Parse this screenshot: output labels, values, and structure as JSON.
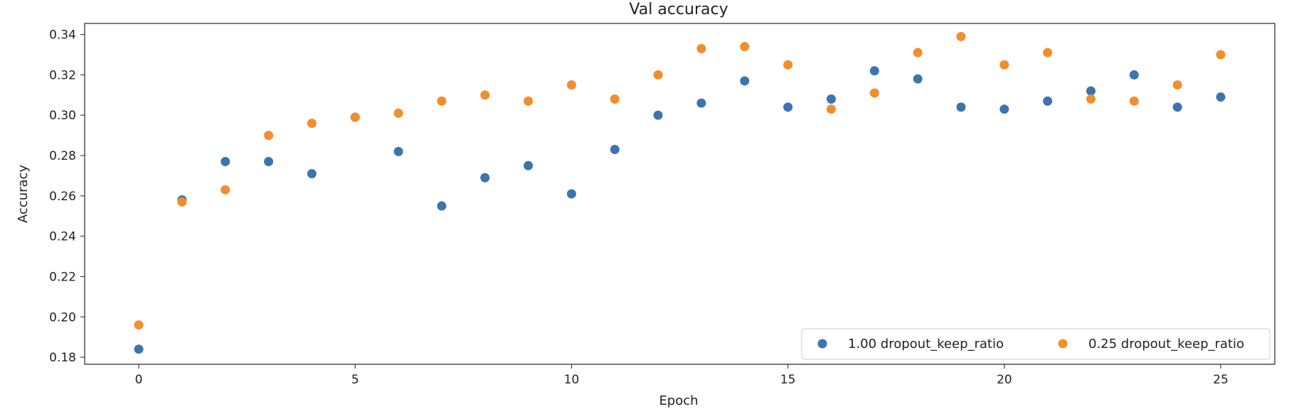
{
  "chart_data": {
    "type": "scatter",
    "title": "Val accuracy",
    "xlabel": "Epoch",
    "ylabel": "Accuracy",
    "xlim": [
      -1.25,
      26.25
    ],
    "ylim": [
      0.1765,
      0.3455
    ],
    "xticks": [
      0,
      5,
      10,
      15,
      20,
      25
    ],
    "xtick_labels": [
      "0",
      "5",
      "10",
      "15",
      "20",
      "25"
    ],
    "yticks": [
      0.18,
      0.2,
      0.22,
      0.24,
      0.26,
      0.28,
      0.3,
      0.32,
      0.34
    ],
    "ytick_labels": [
      "0.18",
      "0.20",
      "0.22",
      "0.24",
      "0.26",
      "0.28",
      "0.30",
      "0.32",
      "0.34"
    ],
    "grid": false,
    "legend_position": "lower-right",
    "x": [
      0,
      1,
      2,
      3,
      4,
      5,
      6,
      7,
      8,
      9,
      10,
      11,
      12,
      13,
      14,
      15,
      16,
      17,
      18,
      19,
      20,
      21,
      22,
      23,
      24,
      25
    ],
    "series": [
      {
        "name": "1.00 dropout_keep_ratio",
        "color": "#3a75b0",
        "values": [
          0.184,
          0.258,
          0.277,
          0.277,
          0.271,
          0.299,
          0.282,
          0.255,
          0.269,
          0.275,
          0.261,
          0.283,
          0.3,
          0.306,
          0.317,
          0.304,
          0.308,
          0.322,
          0.318,
          0.304,
          0.303,
          0.307,
          0.312,
          0.32,
          0.304,
          0.309
        ]
      },
      {
        "name": "0.25 dropout_keep_ratio",
        "color": "#f28e2b",
        "values": [
          0.196,
          0.257,
          0.263,
          0.29,
          0.296,
          0.299,
          0.301,
          0.307,
          0.31,
          0.307,
          0.315,
          0.308,
          0.32,
          0.333,
          0.334,
          0.325,
          0.303,
          0.311,
          0.331,
          0.339,
          0.325,
          0.331,
          0.308,
          0.307,
          0.315,
          0.33
        ]
      }
    ]
  }
}
